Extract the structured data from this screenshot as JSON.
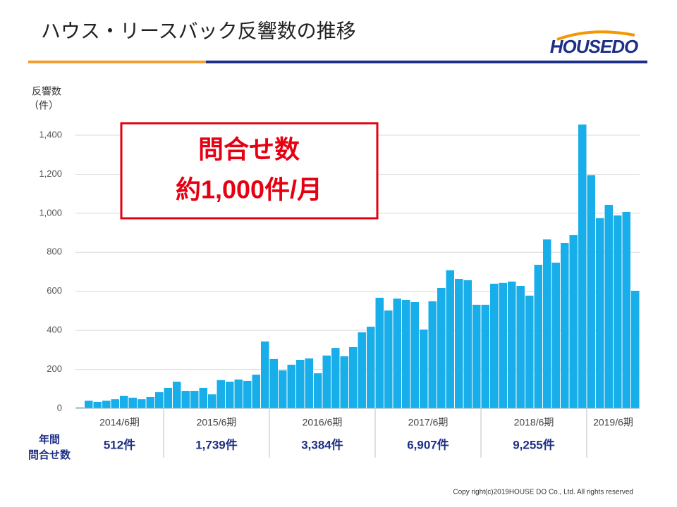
{
  "header": {
    "title": "ハウス・リースバック反響数の推移",
    "logo": "HOUSEDO"
  },
  "chart_data": {
    "type": "bar",
    "y_axis_label": [
      "反響数",
      "（件）"
    ],
    "categories": [
      null,
      null,
      null,
      null,
      null,
      null,
      null,
      null,
      null,
      null,
      null,
      null,
      null,
      null,
      null,
      null,
      null,
      null,
      null,
      null,
      null,
      null,
      null,
      null,
      null,
      null,
      null,
      null,
      null,
      null,
      null,
      null,
      null,
      null,
      null,
      null,
      null,
      null,
      null,
      null,
      null,
      null,
      null,
      null,
      null,
      null,
      null,
      null,
      null,
      null,
      null,
      null,
      null,
      null,
      null,
      null,
      null,
      null,
      null,
      null,
      null,
      null,
      null,
      null
    ],
    "values": [
      5,
      40,
      33,
      40,
      47,
      65,
      55,
      47,
      58,
      83,
      105,
      137,
      90,
      90,
      105,
      72,
      145,
      137,
      148,
      141,
      173,
      343,
      253,
      195,
      224,
      249,
      256,
      180,
      271,
      310,
      267,
      314,
      390,
      419,
      567,
      502,
      563,
      556,
      545,
      404,
      549,
      617,
      708,
      664,
      657,
      531,
      531,
      639,
      643,
      650,
      628,
      578,
      736,
      866,
      747,
      848,
      888,
      1455,
      1195,
      975,
      1043,
      989,
      1007,
      603
    ],
    "color": "#18aeea",
    "ylim": [
      0,
      1500
    ],
    "yticks": [
      0,
      200,
      400,
      600,
      800,
      {
        "value": 1000,
        "label": "1,000"
      },
      {
        "value": 1200,
        "label": "1,200"
      },
      {
        "value": 1400,
        "label": "1,400"
      }
    ],
    "grid": true,
    "periods": [
      "2014/6期",
      "2015/6期",
      "2016/6期",
      "2017/6期",
      "2018/6期",
      "2019/6期"
    ],
    "annual_label": [
      "年間",
      "問合せ数"
    ],
    "annual_totals": [
      "512件",
      "1,739件",
      "3,384件",
      "6,907件",
      "9,255件"
    ],
    "callout": [
      "問合せ数",
      "約1,000件/月"
    ]
  },
  "footer": {
    "copyright": "Copy right(c)2019HOUSE DO Co., Ltd. All rights reserved"
  }
}
